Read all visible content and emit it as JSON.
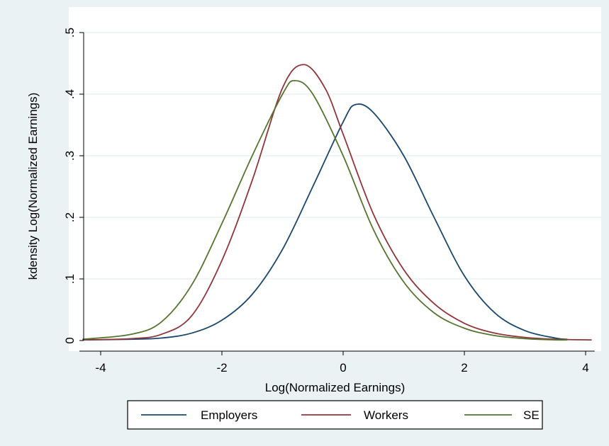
{
  "chart_data": {
    "type": "line",
    "xlabel": "Log(Normalized Earnings)",
    "ylabel": "kdensity Log(Normalized Earnings)",
    "xlim": [
      -4.4,
      4.2
    ],
    "ylim": [
      0,
      0.5
    ],
    "x_ticks": [
      -4,
      -2,
      0,
      2,
      4
    ],
    "x_tick_labels": [
      "-4",
      "-2",
      "0",
      "2",
      "4"
    ],
    "y_ticks": [
      0,
      0.1,
      0.2,
      0.3,
      0.4,
      0.5
    ],
    "y_tick_labels": [
      "0",
      ".1",
      ".2",
      ".3",
      ".4",
      ".5"
    ],
    "grid": true,
    "legend_position": "bottom",
    "series": [
      {
        "name": "Employers",
        "color": "#1a476f",
        "x": [
          -4.3,
          -3.5,
          -3.0,
          -2.5,
          -2.0,
          -1.5,
          -1.0,
          -0.5,
          0.0,
          0.2,
          0.5,
          1.0,
          1.5,
          2.0,
          2.5,
          3.0,
          3.5,
          3.7
        ],
        "y": [
          0.001,
          0.002,
          0.004,
          0.012,
          0.033,
          0.075,
          0.148,
          0.25,
          0.355,
          0.383,
          0.37,
          0.3,
          0.2,
          0.105,
          0.045,
          0.016,
          0.004,
          0.002
        ]
      },
      {
        "name": "Workers",
        "color": "#90353b",
        "x": [
          -4.3,
          -3.5,
          -3.0,
          -2.5,
          -2.0,
          -1.5,
          -1.0,
          -0.65,
          -0.3,
          0.0,
          0.5,
          1.0,
          1.5,
          2.0,
          2.5,
          3.0,
          3.5,
          4.1
        ],
        "y": [
          0.001,
          0.003,
          0.01,
          0.04,
          0.13,
          0.26,
          0.41,
          0.448,
          0.41,
          0.335,
          0.205,
          0.115,
          0.06,
          0.028,
          0.012,
          0.005,
          0.002,
          0.001
        ]
      },
      {
        "name": "SE",
        "color": "#55752f",
        "x": [
          -4.3,
          -3.5,
          -3.0,
          -2.5,
          -2.0,
          -1.5,
          -1.0,
          -0.8,
          -0.5,
          0.0,
          0.5,
          1.0,
          1.5,
          2.0,
          2.5,
          3.0,
          3.5,
          3.7
        ],
        "y": [
          0.002,
          0.01,
          0.03,
          0.09,
          0.19,
          0.3,
          0.4,
          0.422,
          0.4,
          0.3,
          0.18,
          0.095,
          0.045,
          0.02,
          0.008,
          0.003,
          0.001,
          0.001
        ]
      }
    ]
  },
  "colors": {
    "outer_background": "#eaf2f3",
    "plot_background": "#ffffff",
    "grid": "#eaf2f3"
  }
}
